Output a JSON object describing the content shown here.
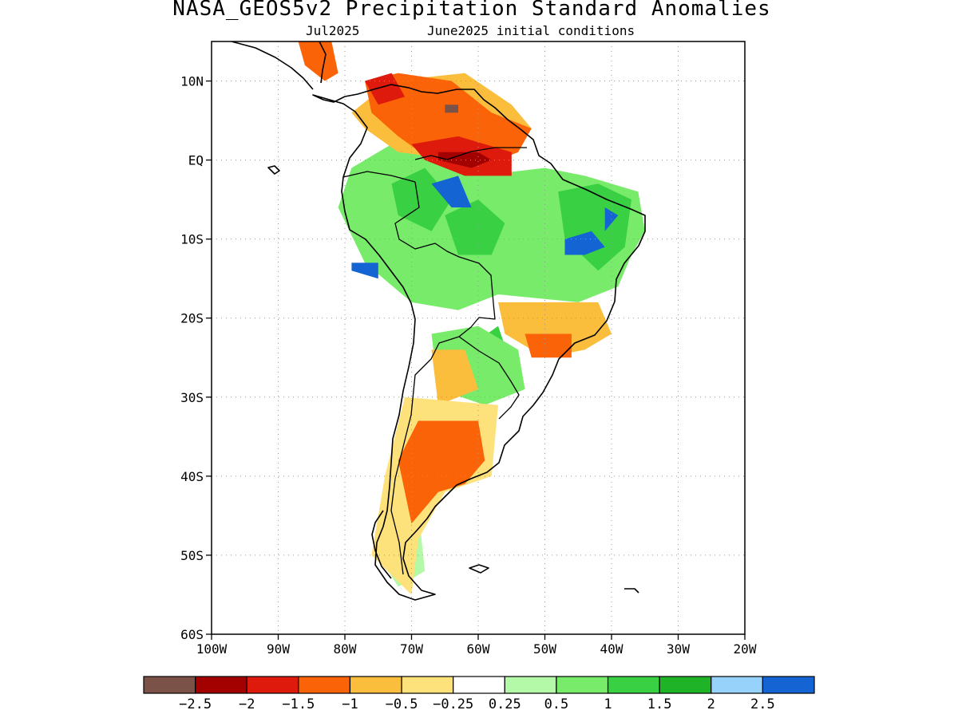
{
  "title": "NASA_GEOS5v2 Precipitation Standard Anomalies",
  "subtitle_left": "Jul2025",
  "subtitle_right": "June2025 initial conditions",
  "map": {
    "lon_range": [
      -100,
      -20
    ],
    "lat_range": [
      -60,
      15
    ],
    "lat_ticks": [
      {
        "value": 10,
        "label": "10N"
      },
      {
        "value": 0,
        "label": "EQ"
      },
      {
        "value": -10,
        "label": "10S"
      },
      {
        "value": -20,
        "label": "20S"
      },
      {
        "value": -30,
        "label": "30S"
      },
      {
        "value": -40,
        "label": "40S"
      },
      {
        "value": -50,
        "label": "50S"
      },
      {
        "value": -60,
        "label": "60S"
      }
    ],
    "lon_ticks": [
      {
        "value": -100,
        "label": "100W"
      },
      {
        "value": -90,
        "label": "90W"
      },
      {
        "value": -80,
        "label": "80W"
      },
      {
        "value": -70,
        "label": "70W"
      },
      {
        "value": -60,
        "label": "60W"
      },
      {
        "value": -50,
        "label": "50W"
      },
      {
        "value": -40,
        "label": "40W"
      },
      {
        "value": -30,
        "label": "30W"
      },
      {
        "value": -20,
        "label": "20W"
      }
    ],
    "grid": "dotted",
    "coastline_color": "#000000"
  },
  "colorbar": {
    "colors": [
      "#7b5247",
      "#a30000",
      "#dd1a0b",
      "#fb6309",
      "#fbbd3c",
      "#fde17a",
      "#ffffff",
      "#b4f9a8",
      "#78ec6a",
      "#3ad044",
      "#1fb428",
      "#96d2fa",
      "#1464d3"
    ],
    "labels": [
      "−2.5",
      "−2",
      "−1.5",
      "−1",
      "−0.5",
      "−0.25",
      "0.25",
      "0.5",
      "1",
      "1.5",
      "2",
      "2.5"
    ]
  },
  "anomaly_regions": [
    {
      "category": "green",
      "color": "#78ec6a",
      "lonlat": [
        [
          -79,
          -1
        ],
        [
          -73,
          2
        ],
        [
          -67,
          1
        ],
        [
          -60,
          -2
        ],
        [
          -50,
          -1
        ],
        [
          -44,
          -2
        ],
        [
          -36,
          -4
        ],
        [
          -35,
          -9
        ],
        [
          -37,
          -12
        ],
        [
          -39,
          -16
        ],
        [
          -45,
          -18
        ],
        [
          -57,
          -17
        ],
        [
          -63,
          -19
        ],
        [
          -70,
          -18
        ],
        [
          -77,
          -13
        ],
        [
          -81,
          -6
        ]
      ]
    },
    {
      "category": "dark-green",
      "color": "#3ad044",
      "lonlat": [
        [
          -73,
          -3
        ],
        [
          -68,
          -1
        ],
        [
          -64,
          -5
        ],
        [
          -67,
          -9
        ],
        [
          -72,
          -7
        ]
      ]
    },
    {
      "category": "dark-green",
      "color": "#3ad044",
      "lonlat": [
        [
          -65,
          -7
        ],
        [
          -60,
          -5
        ],
        [
          -56,
          -8
        ],
        [
          -58,
          -12
        ],
        [
          -63,
          -12
        ]
      ]
    },
    {
      "category": "dark-green",
      "color": "#3ad044",
      "lonlat": [
        [
          -48,
          -4
        ],
        [
          -42,
          -3
        ],
        [
          -37,
          -5
        ],
        [
          -38,
          -11
        ],
        [
          -42,
          -14
        ],
        [
          -47,
          -10
        ]
      ]
    },
    {
      "category": "dark-green",
      "color": "#3ad044",
      "lonlat": [
        [
          -62,
          -24
        ],
        [
          -57,
          -21
        ],
        [
          -55,
          -26
        ],
        [
          -58,
          -30
        ],
        [
          -62,
          -28
        ]
      ]
    },
    {
      "category": "green",
      "color": "#78ec6a",
      "lonlat": [
        [
          -67,
          -22
        ],
        [
          -60,
          -21
        ],
        [
          -54,
          -24
        ],
        [
          -53,
          -29
        ],
        [
          -59,
          -31
        ],
        [
          -66,
          -29
        ]
      ]
    },
    {
      "category": "light-green",
      "color": "#b4f9a8",
      "lonlat": [
        [
          -73,
          -44
        ],
        [
          -69,
          -44
        ],
        [
          -68,
          -52
        ],
        [
          -72,
          -54
        ],
        [
          -75,
          -50
        ]
      ]
    },
    {
      "category": "blue",
      "color": "#1464d3",
      "lonlat": [
        [
          -67,
          -3
        ],
        [
          -63,
          -2
        ],
        [
          -61,
          -6
        ],
        [
          -64,
          -6
        ]
      ]
    },
    {
      "category": "blue",
      "color": "#1464d3",
      "lonlat": [
        [
          -47,
          -10
        ],
        [
          -43,
          -9
        ],
        [
          -41,
          -11
        ],
        [
          -44,
          -12
        ],
        [
          -47,
          -12
        ]
      ]
    },
    {
      "category": "blue",
      "color": "#1464d3",
      "lonlat": [
        [
          -41,
          -6
        ],
        [
          -39,
          -7
        ],
        [
          -41,
          -9
        ]
      ]
    },
    {
      "category": "blue",
      "color": "#1464d3",
      "lonlat": [
        [
          -79,
          -13
        ],
        [
          -75,
          -13
        ],
        [
          -75,
          -15
        ],
        [
          -79,
          -14
        ]
      ]
    },
    {
      "category": "light-orange",
      "color": "#fbbd3c",
      "lonlat": [
        [
          -57,
          -18
        ],
        [
          -42,
          -18
        ],
        [
          -40,
          -22
        ],
        [
          -44,
          -24
        ],
        [
          -50,
          -25
        ],
        [
          -56,
          -22
        ]
      ]
    },
    {
      "category": "orange",
      "color": "#fb6309",
      "lonlat": [
        [
          -53,
          -22
        ],
        [
          -46,
          -22
        ],
        [
          -46,
          -25
        ],
        [
          -52,
          -25
        ]
      ]
    },
    {
      "category": "light-orange",
      "color": "#fbbd3c",
      "lonlat": [
        [
          -67,
          -24
        ],
        [
          -62,
          -24
        ],
        [
          -60,
          -29
        ],
        [
          -66,
          -31
        ]
      ]
    },
    {
      "category": "yellow",
      "color": "#fde17a",
      "lonlat": [
        [
          -71,
          -30
        ],
        [
          -57,
          -31
        ],
        [
          -58,
          -40
        ],
        [
          -65,
          -42
        ],
        [
          -69,
          -48
        ],
        [
          -70,
          -55
        ],
        [
          -76,
          -50
        ],
        [
          -74,
          -40
        ]
      ]
    },
    {
      "category": "orange",
      "color": "#fb6309",
      "lonlat": [
        [
          -69,
          -33
        ],
        [
          -60,
          -33
        ],
        [
          -59,
          -38
        ],
        [
          -62,
          -41
        ],
        [
          -66,
          -42
        ],
        [
          -70,
          -46
        ],
        [
          -72,
          -38
        ]
      ]
    },
    {
      "category": "light-orange",
      "color": "#fbbd3c",
      "lonlat": [
        [
          -79,
          6
        ],
        [
          -73,
          10
        ],
        [
          -62,
          11
        ],
        [
          -55,
          7
        ],
        [
          -52,
          4
        ],
        [
          -55,
          1
        ],
        [
          -63,
          0
        ],
        [
          -72,
          1
        ],
        [
          -77,
          4
        ]
      ]
    },
    {
      "category": "orange",
      "color": "#fb6309",
      "lonlat": [
        [
          -77,
          10
        ],
        [
          -72,
          11
        ],
        [
          -64,
          10
        ],
        [
          -58,
          6
        ],
        [
          -52,
          4
        ],
        [
          -54,
          1
        ],
        [
          -60,
          -1
        ],
        [
          -67,
          0
        ],
        [
          -72,
          3
        ],
        [
          -76,
          6
        ]
      ]
    },
    {
      "category": "red",
      "color": "#dd1a0b",
      "lonlat": [
        [
          -70,
          2
        ],
        [
          -63,
          3
        ],
        [
          -55,
          1
        ],
        [
          -55,
          -2
        ],
        [
          -62,
          -2
        ],
        [
          -68,
          0
        ]
      ]
    },
    {
      "category": "red",
      "color": "#dd1a0b",
      "lonlat": [
        [
          -77,
          10
        ],
        [
          -73,
          11
        ],
        [
          -71,
          8
        ],
        [
          -75,
          7
        ]
      ]
    },
    {
      "category": "dark-red",
      "color": "#a30000",
      "lonlat": [
        [
          -66,
          1
        ],
        [
          -60,
          1
        ],
        [
          -58,
          0
        ],
        [
          -61,
          -1
        ],
        [
          -66,
          0
        ]
      ]
    },
    {
      "category": "brown",
      "color": "#7b5247",
      "lonlat": [
        [
          -65,
          7
        ],
        [
          -63,
          7
        ],
        [
          -63,
          6
        ],
        [
          -65,
          6
        ]
      ]
    },
    {
      "category": "orange",
      "color": "#fb6309",
      "lonlat": [
        [
          -87,
          15
        ],
        [
          -82,
          15
        ],
        [
          -81,
          11
        ],
        [
          -83,
          10
        ],
        [
          -86,
          12
        ]
      ]
    }
  ]
}
